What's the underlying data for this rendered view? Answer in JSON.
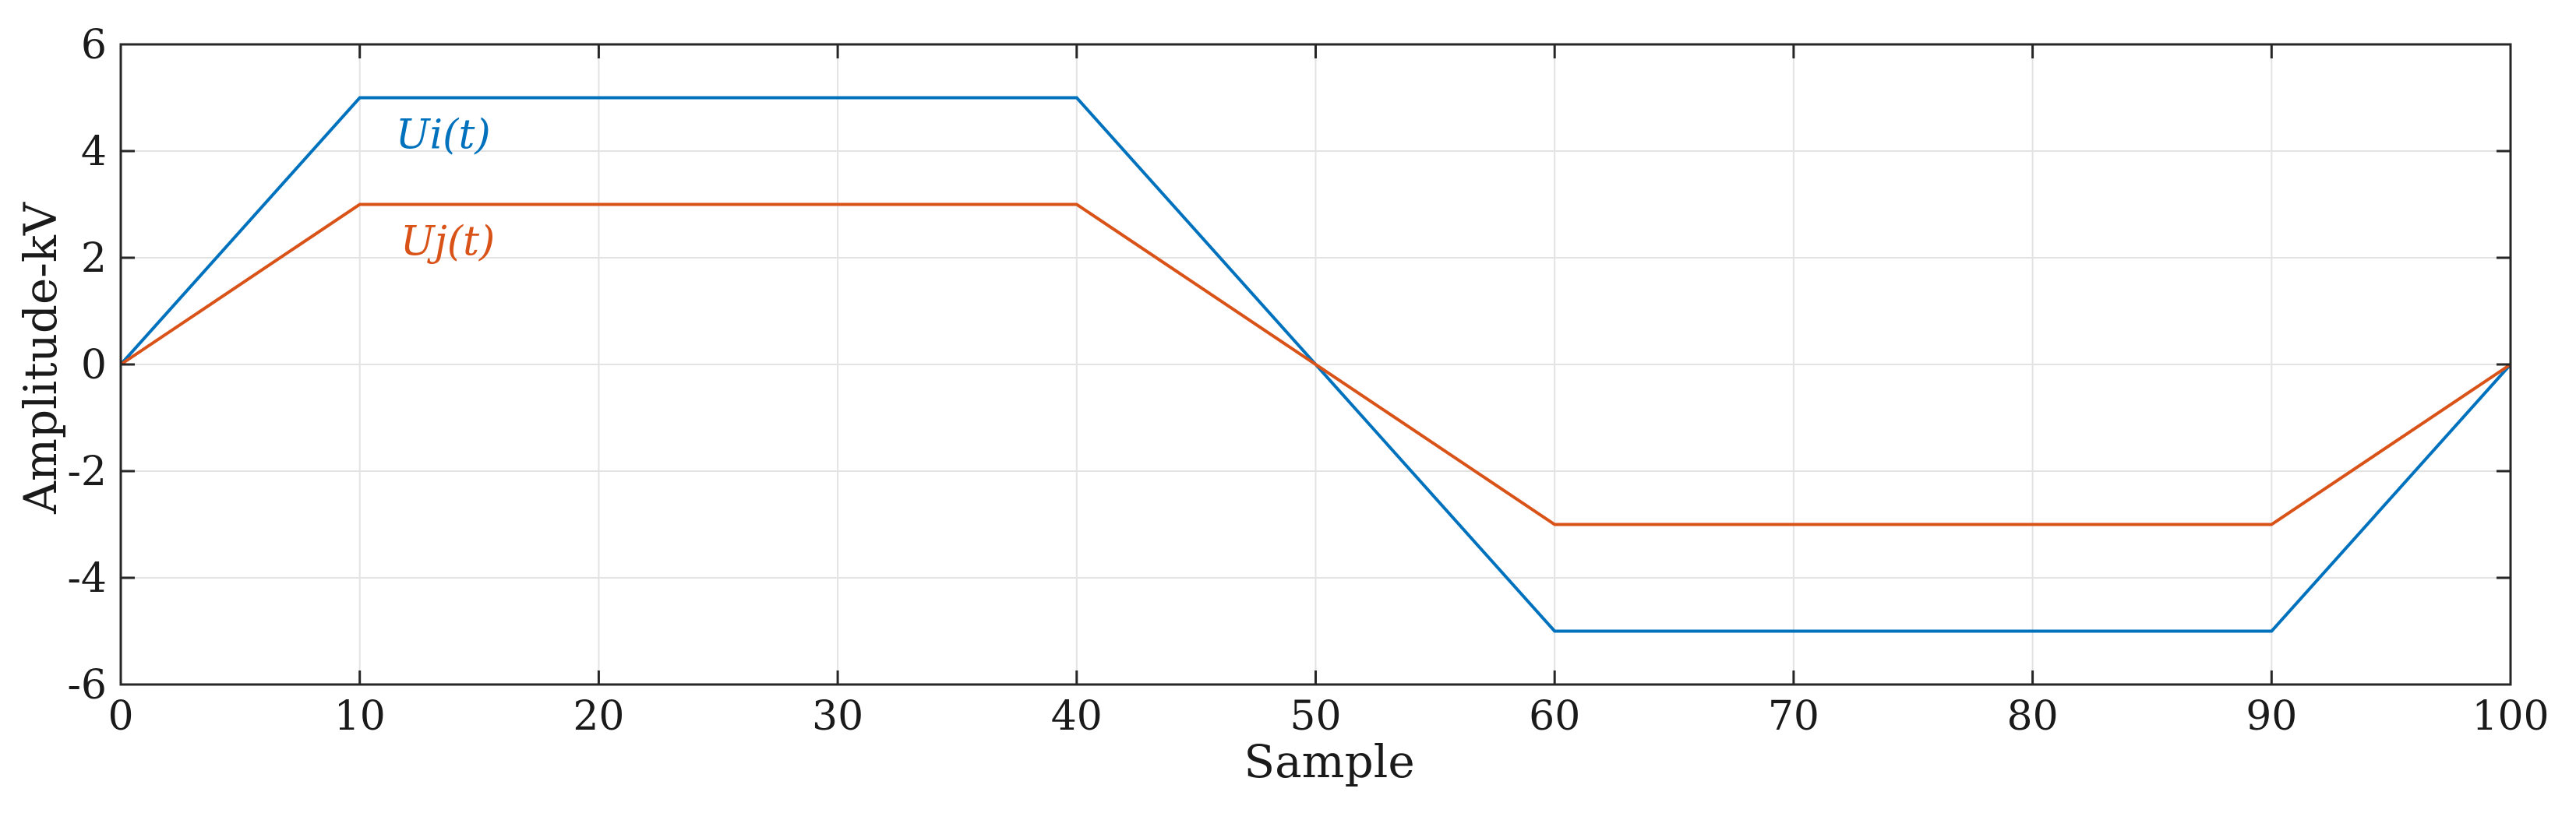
{
  "chart_data": {
    "type": "line",
    "title": "",
    "xlabel": "Sample",
    "ylabel": "Amplitude-kV",
    "xlim": [
      0,
      100
    ],
    "ylim": [
      -6,
      6
    ],
    "xticks": [
      0,
      10,
      20,
      30,
      40,
      50,
      60,
      70,
      80,
      90,
      100
    ],
    "xtick_labels": [
      "0",
      "10",
      "20",
      "30",
      "40",
      "50",
      "60",
      "70",
      "80",
      "90",
      "100"
    ],
    "yticks": [
      -6,
      -4,
      -2,
      0,
      2,
      4,
      6
    ],
    "ytick_labels": [
      "-6",
      "-4",
      "-2",
      "0",
      "2",
      "4",
      "6"
    ],
    "grid": true,
    "legend": "inline labels near series",
    "series": [
      {
        "name": "Ui(t)",
        "color": "#0072BD",
        "x": [
          0,
          10,
          40,
          60,
          90,
          100
        ],
        "y": [
          0,
          5,
          5,
          -5,
          -5,
          0
        ]
      },
      {
        "name": "Uj(t)",
        "color": "#D95319",
        "x": [
          0,
          10,
          40,
          60,
          90,
          100
        ],
        "y": [
          0,
          3,
          3,
          -3,
          -3,
          0
        ]
      }
    ],
    "annotations": [
      {
        "text": "Ui(t)",
        "x": 11.5,
        "y": 4.05,
        "color": "#0072BD"
      },
      {
        "text": "Uj(t)",
        "x": 11.7,
        "y": 2.05,
        "color": "#D95319"
      }
    ]
  }
}
